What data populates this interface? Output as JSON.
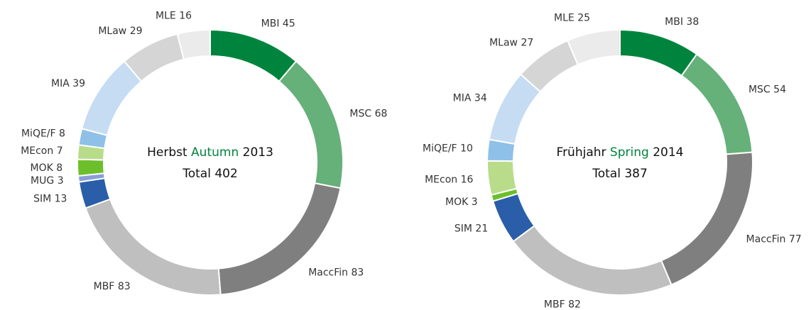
{
  "chart_data": [
    {
      "type": "donut",
      "title_prefix": "Herbst",
      "title_highlight": "Autumn",
      "title_suffix": "2013",
      "highlight_color": "#00843d",
      "total_label": "Total",
      "total": 402,
      "categories": [
        "MBI",
        "MSC",
        "MaccFin",
        "MBF",
        "SIM",
        "MUG",
        "MOK",
        "MEcon",
        "MiQE/F",
        "MIA",
        "MLaw",
        "MLE"
      ],
      "values": [
        45,
        68,
        83,
        83,
        13,
        3,
        8,
        7,
        8,
        39,
        29,
        16
      ],
      "colors": [
        "#00843d",
        "#66b07a",
        "#7f7f7f",
        "#bfbfbf",
        "#2a5ea8",
        "#8a9fd6",
        "#6cbf2a",
        "#b8dc8a",
        "#8fc0e8",
        "#c5dcf3",
        "#d5d5d5",
        "#ebebeb"
      ]
    },
    {
      "type": "donut",
      "title_prefix": "Frühjahr",
      "title_highlight": "Spring",
      "title_suffix": "2014",
      "highlight_color": "#00843d",
      "total_label": "Total",
      "total": 387,
      "categories": [
        "MBI",
        "MSC",
        "MaccFin",
        "MBF",
        "SIM",
        "MOK",
        "MEcon",
        "MiQE/F",
        "MIA",
        "MLaw",
        "MLE"
      ],
      "values": [
        38,
        54,
        77,
        82,
        21,
        3,
        16,
        10,
        34,
        27,
        25
      ],
      "colors": [
        "#00843d",
        "#66b07a",
        "#7f7f7f",
        "#bfbfbf",
        "#2a5ea8",
        "#6cbf2a",
        "#b8dc8a",
        "#8fc0e8",
        "#c5dcf3",
        "#d5d5d5",
        "#ebebeb"
      ]
    }
  ]
}
